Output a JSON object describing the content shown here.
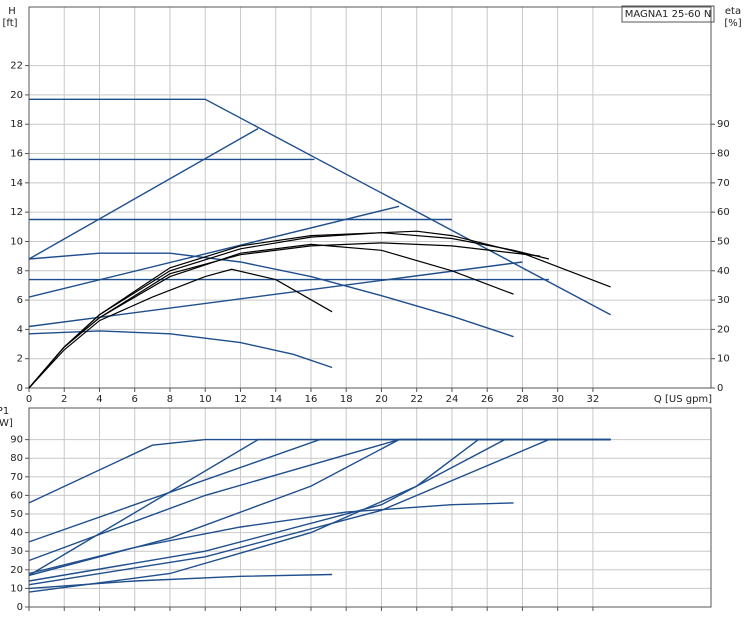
{
  "chart_data": [
    {
      "type": "line",
      "title": "MAGNA1 25-60 N",
      "y_label": "H",
      "y_unit": "[ft]",
      "y2_label": "eta",
      "y2_unit": "[%]",
      "x_label": "Q [US gpm]",
      "xlim": [
        0,
        38.7
      ],
      "xticks": [
        0,
        2,
        4,
        6,
        8,
        10,
        12,
        14,
        16,
        18,
        20,
        22,
        24,
        26,
        28,
        30,
        32
      ],
      "ylim": [
        0,
        26
      ],
      "yticks": [
        0,
        2,
        4,
        6,
        8,
        10,
        12,
        14,
        16,
        18,
        20,
        22
      ],
      "y2lim": [
        0,
        130
      ],
      "y2ticks": [
        0,
        10,
        20,
        30,
        40,
        50,
        60,
        70,
        80,
        90
      ],
      "grid": true,
      "series": [
        {
          "color": "#1f4e8c",
          "x": [
            0,
            10,
            33
          ],
          "values": [
            19.7,
            19.7,
            5
          ]
        },
        {
          "color": "#1f4e8c",
          "x": [
            0,
            16.2
          ],
          "values": [
            15.6,
            15.6
          ]
        },
        {
          "color": "#1f4e8c",
          "x": [
            0,
            24
          ],
          "values": [
            11.5,
            11.5
          ]
        },
        {
          "color": "#1f4e8c",
          "x": [
            0,
            29.5
          ],
          "values": [
            7.4,
            7.4
          ]
        },
        {
          "color": "#1f4e8c",
          "x": [
            0,
            13
          ],
          "values": [
            8.8,
            17.7
          ]
        },
        {
          "color": "#1f4e8c",
          "x": [
            0,
            21
          ],
          "values": [
            6.2,
            12.4
          ]
        },
        {
          "color": "#1f4e8c",
          "x": [
            0,
            28
          ],
          "values": [
            4.2,
            8.6
          ]
        },
        {
          "color": "#1f4e8c",
          "x": [
            0,
            4,
            8,
            12,
            16,
            20,
            24,
            27.5
          ],
          "values": [
            8.8,
            9.2,
            9.2,
            8.6,
            7.6,
            6.3,
            4.9,
            3.5
          ]
        },
        {
          "color": "#1f4e8c",
          "x": [
            0,
            4,
            8,
            12,
            15,
            17.2
          ],
          "values": [
            3.7,
            3.9,
            3.7,
            3.1,
            2.3,
            1.4
          ]
        },
        {
          "color": "#000000",
          "axis": "y2",
          "x": [
            0,
            2,
            4,
            7,
            10,
            11.5,
            14,
            17.2
          ],
          "values": [
            0,
            13,
            23,
            31,
            38,
            40.5,
            37,
            26
          ]
        },
        {
          "color": "#000000",
          "axis": "y2",
          "x": [
            0,
            2,
            4,
            8,
            12,
            16,
            20,
            24,
            27.5
          ],
          "values": [
            0,
            14,
            24,
            38,
            46,
            49,
            47,
            40,
            32
          ]
        },
        {
          "color": "#000000",
          "axis": "y2",
          "x": [
            0,
            2,
            4,
            8,
            12,
            16,
            20,
            22,
            24,
            28,
            33
          ],
          "values": [
            0,
            14,
            25,
            40,
            47.5,
            51.5,
            53,
            53.5,
            52,
            46,
            34.5
          ]
        },
        {
          "color": "#000000",
          "axis": "y2",
          "x": [
            0,
            2,
            4,
            8,
            12,
            16,
            20,
            24,
            27.5,
            29.5
          ],
          "values": [
            0,
            14,
            25,
            41,
            48.5,
            52,
            53,
            51,
            47,
            44
          ]
        },
        {
          "color": "#000000",
          "axis": "y2",
          "x": [
            0,
            2,
            4,
            8,
            12,
            16,
            20,
            24,
            29
          ],
          "values": [
            0,
            14,
            24,
            39,
            45.5,
            48.5,
            49.5,
            48.5,
            45
          ]
        }
      ]
    },
    {
      "type": "line",
      "y_label": "P1",
      "y_unit": "[W]",
      "xlim": [
        0,
        38.7
      ],
      "xticks": [
        0,
        2,
        4,
        6,
        8,
        10,
        12,
        14,
        16,
        18,
        20,
        22,
        24,
        26,
        28,
        30,
        32
      ],
      "ylim": [
        0,
        107
      ],
      "yticks": [
        0,
        10,
        20,
        30,
        40,
        50,
        60,
        70,
        80,
        90
      ],
      "grid": true,
      "series": [
        {
          "color": "#1f4e8c",
          "x": [
            0,
            7,
            10,
            33
          ],
          "values": [
            56,
            87,
            90,
            90
          ]
        },
        {
          "color": "#1f4e8c",
          "x": [
            0,
            16.5,
            33
          ],
          "values": [
            35,
            90,
            90
          ]
        },
        {
          "color": "#1f4e8c",
          "x": [
            0,
            13,
            33
          ],
          "values": [
            17,
            90,
            90
          ]
        },
        {
          "color": "#1f4e8c",
          "x": [
            0,
            10,
            21,
            33
          ],
          "values": [
            25,
            60,
            90,
            90
          ]
        },
        {
          "color": "#1f4e8c",
          "x": [
            0,
            8,
            16,
            21,
            33
          ],
          "values": [
            17,
            37,
            65,
            90,
            90
          ]
        },
        {
          "color": "#1f4e8c",
          "x": [
            0,
            10,
            20,
            27,
            33
          ],
          "values": [
            14,
            30,
            55,
            90,
            90
          ]
        },
        {
          "color": "#1f4e8c",
          "x": [
            0,
            10,
            20,
            29.5,
            33
          ],
          "values": [
            12,
            27,
            52,
            90,
            90
          ]
        },
        {
          "color": "#1f4e8c",
          "x": [
            0,
            6,
            12,
            18,
            24,
            27.5
          ],
          "values": [
            18,
            32,
            43,
            51,
            55,
            56
          ]
        },
        {
          "color": "#1f4e8c",
          "x": [
            0,
            6,
            12,
            17.2
          ],
          "values": [
            10,
            14,
            16.5,
            17.5
          ]
        },
        {
          "color": "#1f4e8c",
          "x": [
            0,
            8,
            16,
            22,
            25.5,
            33
          ],
          "values": [
            8,
            18,
            40,
            65,
            90,
            90
          ]
        }
      ]
    }
  ]
}
